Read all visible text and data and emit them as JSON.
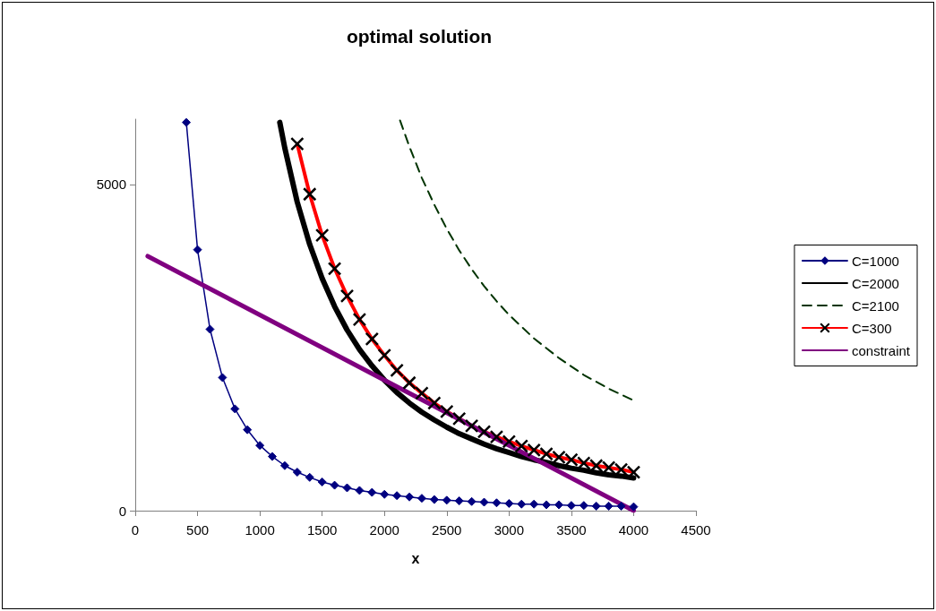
{
  "chart_data": {
    "type": "line",
    "title": "optimal solution",
    "xlabel": "x",
    "xlim": [
      0,
      4500
    ],
    "xticks": [
      0,
      500,
      1000,
      1500,
      2000,
      2500,
      3000,
      3500,
      4000,
      4500
    ],
    "ylim": [
      0,
      6000
    ],
    "yticks": [
      0,
      5000
    ],
    "grid": false,
    "legend": "right",
    "series": [
      {
        "name": "C=1000",
        "color": "#000080",
        "marker": "diamond",
        "line_style": "solid",
        "x": [
          410,
          500,
          600,
          700,
          800,
          900,
          1000,
          1100,
          1200,
          1300,
          1400,
          1500,
          1600,
          1700,
          1800,
          1900,
          2000,
          2100,
          2200,
          2300,
          2400,
          2500,
          2600,
          2700,
          2800,
          2900,
          3000,
          3100,
          3200,
          3300,
          3400,
          3500,
          3600,
          3700,
          3800,
          3900,
          4000
        ],
        "values": [
          5950,
          4000,
          2780,
          2040,
          1560,
          1240,
          1000,
          830,
          690,
          590,
          510,
          440,
          390,
          350,
          310,
          280,
          250,
          230,
          210,
          190,
          170,
          160,
          150,
          140,
          130,
          120,
          110,
          100,
          100,
          90,
          90,
          80,
          80,
          70,
          70,
          70,
          60
        ]
      },
      {
        "name": "C=2000",
        "color": "#000000",
        "marker": "none",
        "line_style": "solid",
        "x": [
          1160,
          1200,
          1300,
          1400,
          1500,
          1600,
          1700,
          1800,
          1900,
          2000,
          2100,
          2200,
          2300,
          2400,
          2500,
          2600,
          2700,
          2800,
          2900,
          3000,
          3100,
          3200,
          3300,
          3400,
          3500,
          3600,
          3700,
          3800,
          3900,
          4000
        ],
        "values": [
          5950,
          5560,
          4730,
          4080,
          3560,
          3130,
          2770,
          2470,
          2220,
          2000,
          1810,
          1650,
          1510,
          1390,
          1280,
          1180,
          1100,
          1020,
          950,
          890,
          830,
          780,
          740,
          690,
          650,
          620,
          580,
          550,
          530,
          500
        ]
      },
      {
        "name": "C=2100",
        "color": "#003300",
        "marker": "none",
        "line_style": "dashed",
        "x": [
          2125,
          2200,
          2300,
          2400,
          2500,
          2600,
          2700,
          2800,
          2900,
          3000,
          3200,
          3400,
          3600,
          3800,
          4000
        ],
        "values": [
          5980,
          5580,
          5100,
          4690,
          4320,
          3990,
          3700,
          3440,
          3210,
          3000,
          2640,
          2340,
          2080,
          1870,
          1690
        ]
      },
      {
        "name": "C=300",
        "color": "#ff0000",
        "marker": "cross",
        "line_style": "solid",
        "x": [
          1300,
          1400,
          1500,
          1600,
          1700,
          1800,
          1900,
          2000,
          2100,
          2200,
          2300,
          2400,
          2500,
          2600,
          2700,
          2800,
          2900,
          3000,
          3100,
          3200,
          3300,
          3400,
          3500,
          3600,
          3700,
          3800,
          3900,
          4000
        ],
        "values": [
          5620,
          4850,
          4220,
          3710,
          3290,
          2930,
          2630,
          2380,
          2150,
          1960,
          1800,
          1650,
          1520,
          1410,
          1300,
          1210,
          1130,
          1060,
          990,
          930,
          870,
          820,
          780,
          730,
          690,
          660,
          630,
          590
        ]
      },
      {
        "name": "constraint",
        "color": "#800080",
        "marker": "none",
        "line_style": "solid",
        "x": [
          100,
          4000
        ],
        "values": [
          3900,
          0
        ]
      }
    ]
  }
}
